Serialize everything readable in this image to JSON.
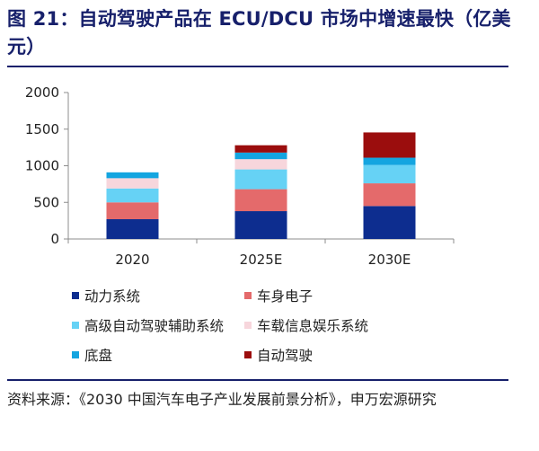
{
  "title": "图 21：自动驾驶产品在 ECU/DCU 市场中增速最快（亿美元）",
  "source": "资料来源：《2030 中国汽车电子产业发展前景分析》，申万宏源研究",
  "colors": {
    "title": "#17206b",
    "axis": "#8c8c8c",
    "powertrain": "#0d2d8f",
    "body_electronics": "#e46a6b",
    "adas": "#66d2f5",
    "infotainment": "#f7d6dc",
    "chassis": "#14a5e0",
    "autonomous": "#9b0d0d"
  },
  "chart_data": {
    "type": "bar",
    "stacked": true,
    "categories": [
      "2020",
      "2025E",
      "2030E"
    ],
    "series": [
      {
        "name": "动力系统",
        "color_key": "powertrain",
        "values": [
          270,
          380,
          450
        ]
      },
      {
        "name": "车身电子",
        "color_key": "body_electronics",
        "values": [
          230,
          300,
          310
        ]
      },
      {
        "name": "高级自动驾驶辅助系统",
        "color_key": "adas",
        "values": [
          190,
          270,
          250
        ]
      },
      {
        "name": "车载信息娱乐系统",
        "color_key": "infotainment",
        "values": [
          140,
          140,
          0
        ]
      },
      {
        "name": "底盘",
        "color_key": "chassis",
        "values": [
          80,
          90,
          100
        ]
      },
      {
        "name": "自动驾驶",
        "color_key": "autonomous",
        "values": [
          0,
          100,
          345
        ]
      }
    ],
    "yticks": [
      0,
      500,
      1000,
      1500,
      2000
    ],
    "ylim": [
      0,
      2000
    ],
    "grid": false,
    "legend_position": "bottom"
  }
}
